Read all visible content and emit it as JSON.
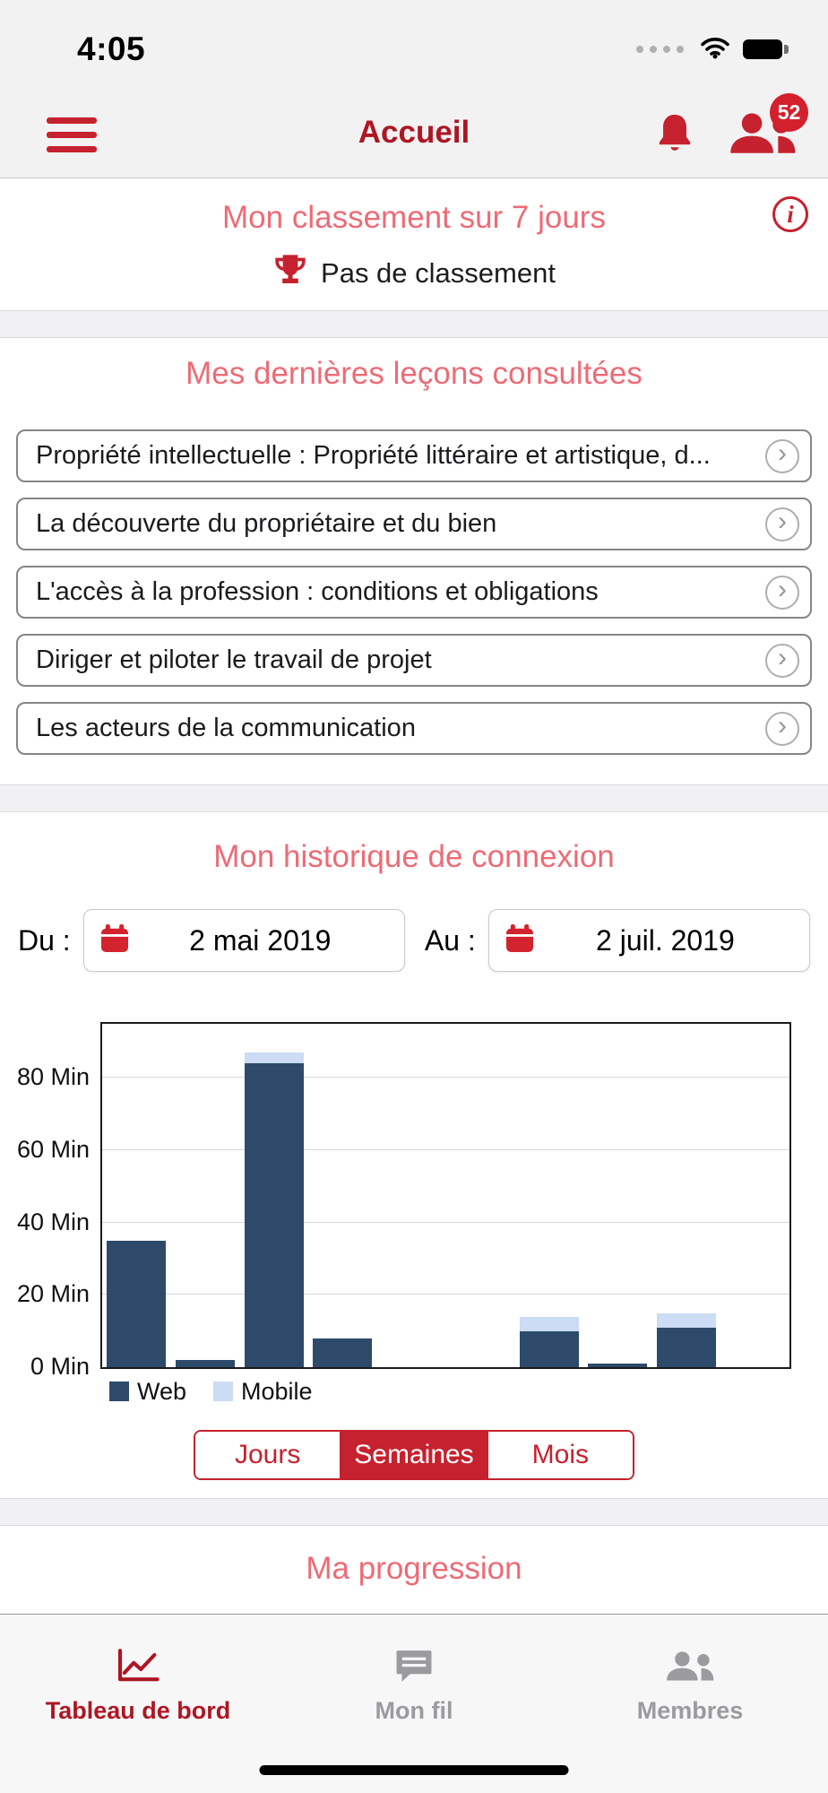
{
  "status_bar": {
    "time": "4:05"
  },
  "header": {
    "title": "Accueil",
    "notifications_badge": "52"
  },
  "ranking": {
    "title": "Mon classement sur 7 jours",
    "empty_text": "Pas de classement"
  },
  "lessons": {
    "title": "Mes dernières leçons consultées",
    "items": [
      {
        "title": "Propriété intellectuelle : Propriété littéraire et artistique, d..."
      },
      {
        "title": "La découverte du propriétaire et du bien"
      },
      {
        "title": "L'accès à la profession : conditions et obligations"
      },
      {
        "title": "Diriger et piloter le travail de projet"
      },
      {
        "title": "Les acteurs de la communication"
      }
    ]
  },
  "history": {
    "title": "Mon historique de connexion",
    "from_label": "Du :",
    "from_value": "2 mai 2019",
    "to_label": "Au :",
    "to_value": "2 juil. 2019",
    "period_tabs": [
      {
        "label": "Jours",
        "selected": false
      },
      {
        "label": "Semaines",
        "selected": true
      },
      {
        "label": "Mois",
        "selected": false
      }
    ]
  },
  "chart_data": {
    "type": "bar",
    "stacked": true,
    "title": "Mon historique de connexion",
    "categories": [
      "",
      "",
      "",
      "",
      "",
      "",
      "",
      "",
      "",
      ""
    ],
    "series": [
      {
        "name": "Web",
        "color": "#2d4a6b",
        "values": [
          35,
          2,
          84,
          8,
          0,
          0,
          10,
          1,
          11,
          0
        ]
      },
      {
        "name": "Mobile",
        "color": "#cbdcf4",
        "values": [
          0,
          0,
          3,
          0,
          0,
          0,
          4,
          0,
          4,
          0
        ]
      }
    ],
    "yticks": [
      {
        "label": "0 Min",
        "value": 0
      },
      {
        "label": "20 Min",
        "value": 20
      },
      {
        "label": "40 Min",
        "value": 40
      },
      {
        "label": "60 Min",
        "value": 60
      },
      {
        "label": "80 Min",
        "value": 80
      }
    ],
    "ylim": [
      0,
      95
    ],
    "ylabel_unit": "Min",
    "grid": true,
    "legend_position": "bottom-left"
  },
  "progression": {
    "title": "Ma progression"
  },
  "tab_bar": {
    "items": [
      {
        "label": "Tableau de bord",
        "selected": true
      },
      {
        "label": "Mon fil",
        "selected": false
      },
      {
        "label": "Membres",
        "selected": false
      }
    ]
  },
  "icons": {
    "chevron": "›",
    "info": "i"
  },
  "colors": {
    "accent": "#c6212e",
    "header_red": "#ae1623",
    "pink_heading": "#ed6b76",
    "web_bar": "#2d4a6b",
    "mobile_bar": "#cbdcf4",
    "inactive_tab": "#9b9b9f",
    "badge": "#d3202c"
  }
}
